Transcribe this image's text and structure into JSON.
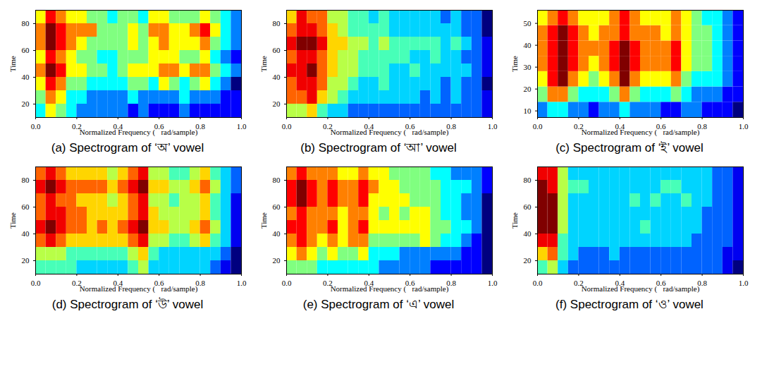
{
  "chart_data": [
    {
      "type": "heatmap",
      "title": "(a) Spectrogram of ‘অ’ vowel",
      "x_label": "Normalized Frequency (   rad/sample)",
      "y_label": "Time",
      "xlim": [
        0,
        1
      ],
      "xticks": [
        0,
        0.2,
        0.4,
        0.6,
        0.8,
        1
      ],
      "ylim": [
        10,
        90
      ],
      "yticks": [
        20,
        40,
        60,
        80
      ],
      "freq_edges": [
        0,
        0.05,
        0.1,
        0.15,
        0.2,
        0.25,
        0.3,
        0.35,
        0.4,
        0.45,
        0.5,
        0.55,
        0.6,
        0.65,
        0.7,
        0.75,
        0.8,
        0.85,
        0.9,
        0.95,
        1
      ],
      "time_edges": [
        10,
        20,
        30,
        40,
        50,
        60,
        70,
        80,
        90
      ],
      "cells": [
        [
          5,
          7,
          6,
          5,
          4,
          4,
          4,
          4,
          4,
          3,
          4,
          3,
          3,
          3,
          4,
          3,
          3,
          3,
          3,
          3
        ],
        [
          6,
          8,
          7,
          5,
          5,
          4,
          4,
          4,
          4,
          5,
          4,
          4,
          4,
          4,
          5,
          4,
          4,
          4,
          3,
          3
        ],
        [
          7,
          9,
          8,
          6,
          6,
          5,
          5,
          5,
          5,
          6,
          6,
          5,
          7,
          6,
          5,
          6,
          7,
          5,
          4,
          2
        ],
        [
          8,
          10,
          9,
          7,
          7,
          6,
          6,
          5,
          6,
          7,
          7,
          7,
          8,
          8,
          7,
          8,
          8,
          6,
          5,
          4
        ],
        [
          7,
          9,
          8,
          7,
          6,
          6,
          5,
          5,
          6,
          6,
          6,
          7,
          7,
          7,
          6,
          6,
          7,
          5,
          4,
          3
        ],
        [
          8,
          10,
          9,
          8,
          7,
          6,
          6,
          6,
          6,
          7,
          6,
          7,
          8,
          7,
          7,
          7,
          8,
          6,
          5,
          4
        ],
        [
          8,
          10,
          9,
          8,
          8,
          8,
          6,
          6,
          6,
          7,
          6,
          8,
          8,
          7,
          7,
          8,
          9,
          7,
          5,
          4
        ],
        [
          7,
          9,
          8,
          7,
          7,
          6,
          6,
          5,
          6,
          6,
          5,
          7,
          7,
          6,
          6,
          6,
          7,
          6,
          5,
          4
        ]
      ]
    },
    {
      "type": "heatmap",
      "title": "(b) Spectrogram of ‘আ’ vowel",
      "x_label": "Normalized Frequency (   rad/sample)",
      "y_label": "Time",
      "xlim": [
        0,
        1
      ],
      "xticks": [
        0,
        0.2,
        0.4,
        0.6,
        0.8,
        1
      ],
      "ylim": [
        10,
        90
      ],
      "yticks": [
        20,
        40,
        60,
        80
      ],
      "freq_edges": [
        0,
        0.05,
        0.1,
        0.15,
        0.2,
        0.25,
        0.3,
        0.35,
        0.4,
        0.45,
        0.5,
        0.55,
        0.6,
        0.65,
        0.7,
        0.75,
        0.8,
        0.85,
        0.9,
        0.95,
        1
      ],
      "time_edges": [
        10,
        20,
        30,
        40,
        50,
        60,
        70,
        80,
        90
      ],
      "cells": [
        [
          6,
          6,
          7,
          5,
          4,
          4,
          3,
          3,
          3,
          3,
          3,
          3,
          3,
          3,
          3,
          3,
          3,
          3,
          3,
          2
        ],
        [
          8,
          8,
          9,
          7,
          6,
          5,
          4,
          4,
          4,
          4,
          4,
          4,
          4,
          3,
          4,
          3,
          4,
          3,
          3,
          2
        ],
        [
          8,
          9,
          9,
          8,
          6,
          6,
          5,
          4,
          4,
          5,
          4,
          4,
          4,
          4,
          4,
          3,
          4,
          3,
          3,
          1
        ],
        [
          9,
          9,
          10,
          8,
          7,
          6,
          6,
          5,
          5,
          5,
          4,
          4,
          5,
          4,
          4,
          4,
          4,
          4,
          3,
          2
        ],
        [
          8,
          9,
          9,
          8,
          7,
          6,
          6,
          5,
          5,
          5,
          5,
          5,
          4,
          4,
          5,
          4,
          4,
          3,
          3,
          2
        ],
        [
          9,
          10,
          10,
          9,
          7,
          7,
          6,
          6,
          5,
          6,
          5,
          5,
          5,
          5,
          5,
          4,
          5,
          4,
          3,
          2
        ],
        [
          8,
          9,
          9,
          8,
          7,
          6,
          5,
          5,
          5,
          5,
          4,
          4,
          4,
          4,
          4,
          4,
          4,
          3,
          3,
          1
        ],
        [
          7,
          9,
          8,
          8,
          6,
          6,
          5,
          5,
          4,
          5,
          4,
          4,
          4,
          4,
          4,
          3,
          4,
          3,
          3,
          1
        ]
      ]
    },
    {
      "type": "heatmap",
      "title": "(c) Spectrogram of ‘ই’ vowel",
      "x_label": "Normalized Frequency (   rad/sample)",
      "y_label": "Time",
      "xlim": [
        0,
        1
      ],
      "xticks": [
        0,
        0.2,
        0.4,
        0.6,
        0.8,
        1
      ],
      "ylim": [
        7,
        56
      ],
      "yticks": [
        10,
        20,
        30,
        40,
        50
      ],
      "freq_edges": [
        0,
        0.05,
        0.1,
        0.15,
        0.2,
        0.25,
        0.3,
        0.35,
        0.4,
        0.45,
        0.5,
        0.55,
        0.6,
        0.65,
        0.7,
        0.75,
        0.8,
        0.85,
        0.9,
        0.95,
        1
      ],
      "time_edges": [
        7,
        14,
        21,
        28,
        35,
        42,
        49,
        56
      ],
      "cells": [
        [
          4,
          5,
          5,
          4,
          4,
          3,
          4,
          4,
          5,
          4,
          4,
          4,
          3,
          3,
          4,
          4,
          3,
          3,
          3,
          2
        ],
        [
          6,
          8,
          8,
          6,
          5,
          5,
          5,
          6,
          8,
          6,
          5,
          5,
          5,
          6,
          5,
          4,
          4,
          4,
          3,
          3
        ],
        [
          7,
          9,
          10,
          8,
          7,
          6,
          7,
          8,
          10,
          8,
          7,
          7,
          7,
          8,
          6,
          5,
          5,
          5,
          4,
          3
        ],
        [
          8,
          9,
          10,
          9,
          8,
          7,
          8,
          9,
          10,
          9,
          8,
          8,
          8,
          9,
          7,
          6,
          6,
          5,
          4,
          3
        ],
        [
          8,
          9,
          10,
          9,
          8,
          8,
          8,
          9,
          10,
          9,
          8,
          8,
          8,
          9,
          7,
          6,
          6,
          5,
          4,
          3
        ],
        [
          8,
          9,
          10,
          9,
          8,
          7,
          8,
          8,
          9,
          8,
          8,
          8,
          7,
          8,
          7,
          6,
          6,
          5,
          4,
          3
        ],
        [
          7,
          8,
          9,
          8,
          7,
          7,
          7,
          8,
          9,
          8,
          7,
          7,
          7,
          8,
          7,
          6,
          5,
          5,
          4,
          3
        ]
      ]
    },
    {
      "type": "heatmap",
      "title": "(d) Spectrogram of ‘উ’ vowel",
      "x_label": "Normalized Frequency (   rad/sample)",
      "y_label": "Time",
      "xlim": [
        0,
        1
      ],
      "xticks": [
        0,
        0.2,
        0.4,
        0.6,
        0.8,
        1
      ],
      "ylim": [
        10,
        90
      ],
      "yticks": [
        20,
        40,
        60,
        80
      ],
      "freq_edges": [
        0,
        0.05,
        0.1,
        0.15,
        0.2,
        0.25,
        0.3,
        0.35,
        0.4,
        0.45,
        0.5,
        0.55,
        0.6,
        0.65,
        0.7,
        0.75,
        0.8,
        0.85,
        0.9,
        0.95,
        1
      ],
      "time_edges": [
        10,
        20,
        30,
        40,
        50,
        60,
        70,
        80,
        90
      ],
      "cells": [
        [
          5,
          5,
          5,
          5,
          4,
          4,
          4,
          4,
          4,
          5,
          6,
          4,
          4,
          4,
          4,
          4,
          4,
          3,
          2,
          1
        ],
        [
          6,
          6,
          6,
          5,
          5,
          5,
          5,
          5,
          5,
          6,
          7,
          5,
          4,
          4,
          4,
          4,
          4,
          4,
          3,
          1
        ],
        [
          8,
          9,
          8,
          7,
          7,
          7,
          7,
          7,
          7,
          8,
          9,
          6,
          6,
          5,
          5,
          6,
          7,
          5,
          4,
          2
        ],
        [
          9,
          10,
          9,
          8,
          8,
          7,
          8,
          7,
          8,
          9,
          10,
          7,
          7,
          6,
          6,
          7,
          8,
          6,
          4,
          2
        ],
        [
          8,
          9,
          9,
          8,
          8,
          7,
          7,
          7,
          7,
          8,
          9,
          7,
          6,
          6,
          6,
          6,
          7,
          5,
          4,
          2
        ],
        [
          8,
          9,
          8,
          8,
          7,
          7,
          7,
          6,
          7,
          8,
          9,
          6,
          6,
          5,
          6,
          6,
          7,
          5,
          4,
          2
        ],
        [
          9,
          10,
          9,
          8,
          8,
          8,
          8,
          7,
          8,
          9,
          10,
          7,
          7,
          6,
          6,
          7,
          8,
          6,
          4,
          3
        ],
        [
          8,
          9,
          8,
          7,
          7,
          7,
          7,
          6,
          7,
          8,
          9,
          6,
          6,
          5,
          5,
          6,
          7,
          5,
          4,
          3
        ]
      ]
    },
    {
      "type": "heatmap",
      "title": "(e) Spectrogram of ‘এ’ vowel",
      "x_label": "Normalized Frequency (   rad/sample)",
      "y_label": "Time",
      "xlim": [
        0,
        1
      ],
      "xticks": [
        0,
        0.2,
        0.4,
        0.6,
        0.8,
        1
      ],
      "ylim": [
        10,
        90
      ],
      "yticks": [
        20,
        40,
        60,
        80
      ],
      "freq_edges": [
        0,
        0.05,
        0.1,
        0.15,
        0.2,
        0.25,
        0.3,
        0.35,
        0.4,
        0.45,
        0.5,
        0.55,
        0.6,
        0.65,
        0.7,
        0.75,
        0.8,
        0.85,
        0.9,
        0.95,
        1
      ],
      "time_edges": [
        10,
        20,
        30,
        40,
        50,
        60,
        70,
        80,
        90
      ],
      "cells": [
        [
          6,
          6,
          6,
          5,
          5,
          5,
          5,
          5,
          5,
          4,
          4,
          4,
          4,
          4,
          3,
          3,
          3,
          3,
          3,
          2
        ],
        [
          7,
          8,
          7,
          6,
          7,
          6,
          6,
          7,
          5,
          5,
          5,
          4,
          4,
          4,
          4,
          4,
          4,
          3,
          3,
          2
        ],
        [
          8,
          9,
          8,
          7,
          8,
          7,
          8,
          8,
          6,
          6,
          6,
          6,
          6,
          7,
          6,
          5,
          5,
          4,
          3,
          2
        ],
        [
          9,
          9,
          8,
          8,
          9,
          7,
          8,
          9,
          7,
          7,
          7,
          7,
          7,
          7,
          6,
          6,
          5,
          5,
          4,
          2
        ],
        [
          8,
          9,
          8,
          8,
          8,
          7,
          8,
          8,
          7,
          6,
          7,
          6,
          7,
          7,
          6,
          5,
          5,
          4,
          4,
          2
        ],
        [
          9,
          10,
          9,
          8,
          9,
          8,
          8,
          9,
          7,
          7,
          7,
          7,
          6,
          6,
          6,
          5,
          5,
          4,
          4,
          2
        ],
        [
          9,
          10,
          9,
          8,
          9,
          8,
          8,
          9,
          8,
          7,
          7,
          6,
          6,
          6,
          6,
          5,
          5,
          5,
          4,
          3
        ],
        [
          8,
          9,
          8,
          8,
          8,
          7,
          7,
          8,
          7,
          7,
          6,
          6,
          6,
          6,
          5,
          5,
          4,
          4,
          4,
          3
        ]
      ]
    },
    {
      "type": "heatmap",
      "title": "(f) Spectrogram of ‘ও’ vowel",
      "x_label": "Normalized Frequency (   rad/sample)",
      "y_label": "Time",
      "xlim": [
        0,
        1
      ],
      "xticks": [
        0,
        0.2,
        0.4,
        0.6,
        0.8,
        1
      ],
      "ylim": [
        10,
        90
      ],
      "yticks": [
        20,
        40,
        60,
        80
      ],
      "freq_edges": [
        0,
        0.05,
        0.1,
        0.15,
        0.2,
        0.25,
        0.3,
        0.35,
        0.4,
        0.45,
        0.5,
        0.55,
        0.6,
        0.65,
        0.7,
        0.75,
        0.8,
        0.85,
        0.9,
        0.95,
        1
      ],
      "time_edges": [
        10,
        20,
        30,
        40,
        50,
        60,
        70,
        80,
        90
      ],
      "cells": [
        [
          5,
          6,
          4,
          3,
          3,
          3,
          3,
          3,
          3,
          3,
          3,
          3,
          3,
          3,
          3,
          3,
          3,
          3,
          2,
          1
        ],
        [
          7,
          8,
          5,
          4,
          3,
          3,
          3,
          4,
          3,
          3,
          3,
          3,
          3,
          3,
          3,
          3,
          3,
          3,
          2,
          2
        ],
        [
          9,
          9,
          5,
          4,
          4,
          4,
          4,
          4,
          4,
          4,
          4,
          4,
          4,
          4,
          4,
          3,
          3,
          3,
          3,
          2
        ],
        [
          10,
          10,
          6,
          4,
          4,
          4,
          4,
          4,
          4,
          4,
          5,
          4,
          4,
          4,
          4,
          4,
          3,
          3,
          3,
          2
        ],
        [
          10,
          10,
          6,
          4,
          4,
          4,
          4,
          4,
          4,
          4,
          4,
          4,
          4,
          4,
          4,
          4,
          3,
          3,
          3,
          2
        ],
        [
          10,
          10,
          6,
          4,
          4,
          4,
          4,
          4,
          4,
          5,
          4,
          5,
          4,
          4,
          5,
          4,
          4,
          3,
          3,
          2
        ],
        [
          10,
          9,
          6,
          5,
          5,
          4,
          4,
          4,
          4,
          4,
          4,
          4,
          5,
          5,
          4,
          4,
          4,
          3,
          3,
          2
        ],
        [
          9,
          9,
          6,
          4,
          4,
          4,
          4,
          4,
          4,
          4,
          4,
          4,
          4,
          4,
          4,
          4,
          4,
          3,
          3,
          2
        ]
      ]
    }
  ]
}
